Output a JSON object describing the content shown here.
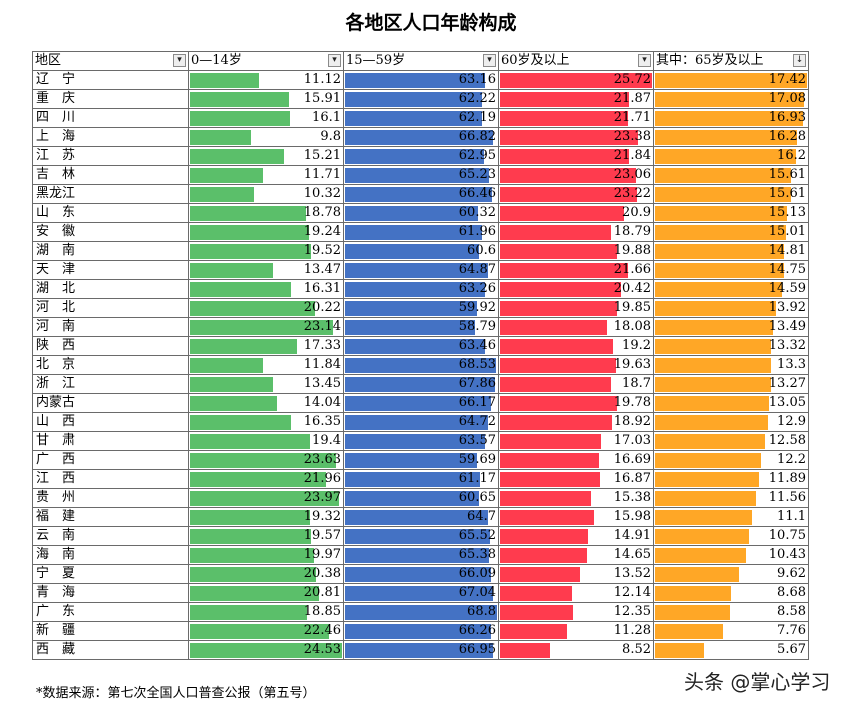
{
  "title": "各地区人口年龄构成",
  "headers": {
    "region": "地区",
    "age0_14": "0—14岁",
    "age15_59": "15—59岁",
    "age60": "60岁及以上",
    "age65": "其中：65岁及以上"
  },
  "filter_icons": {
    "region": "sort-filter-icon",
    "age0_14": "dropdown-icon",
    "age15_59": "dropdown-icon",
    "age60": "dropdown-icon",
    "age65": "sort-descending-icon"
  },
  "colors": {
    "age0_14": "#5bbf6a",
    "age15_59": "#4472c4",
    "age60": "#ff3b4e",
    "age65": "#ffa726"
  },
  "rows": [
    {
      "region": "辽　宁",
      "a": 11.12,
      "b": 63.16,
      "c": 25.72,
      "d": 17.42
    },
    {
      "region": "重　庆",
      "a": 15.91,
      "b": 62.22,
      "c": 21.87,
      "d": 17.08
    },
    {
      "region": "四　川",
      "a": 16.1,
      "b": 62.19,
      "c": 21.71,
      "d": 16.93
    },
    {
      "region": "上　海",
      "a": 9.8,
      "b": 66.82,
      "c": 23.38,
      "d": 16.28
    },
    {
      "region": "江　苏",
      "a": 15.21,
      "b": 62.95,
      "c": 21.84,
      "d": 16.2
    },
    {
      "region": "吉　林",
      "a": 11.71,
      "b": 65.23,
      "c": 23.06,
      "d": 15.61
    },
    {
      "region": "黑龙江",
      "a": 10.32,
      "b": 66.46,
      "c": 23.22,
      "d": 15.61
    },
    {
      "region": "山　东",
      "a": 18.78,
      "b": 60.32,
      "c": 20.9,
      "d": 15.13
    },
    {
      "region": "安　徽",
      "a": 19.24,
      "b": 61.96,
      "c": 18.79,
      "d": 15.01
    },
    {
      "region": "湖　南",
      "a": 19.52,
      "b": 60.6,
      "c": 19.88,
      "d": 14.81
    },
    {
      "region": "天　津",
      "a": 13.47,
      "b": 64.87,
      "c": 21.66,
      "d": 14.75
    },
    {
      "region": "湖　北",
      "a": 16.31,
      "b": 63.26,
      "c": 20.42,
      "d": 14.59
    },
    {
      "region": "河　北",
      "a": 20.22,
      "b": 59.92,
      "c": 19.85,
      "d": 13.92
    },
    {
      "region": "河　南",
      "a": 23.14,
      "b": 58.79,
      "c": 18.08,
      "d": 13.49
    },
    {
      "region": "陕　西",
      "a": 17.33,
      "b": 63.46,
      "c": 19.2,
      "d": 13.32
    },
    {
      "region": "北　京",
      "a": 11.84,
      "b": 68.53,
      "c": 19.63,
      "d": 13.3
    },
    {
      "region": "浙　江",
      "a": 13.45,
      "b": 67.86,
      "c": 18.7,
      "d": 13.27
    },
    {
      "region": "内蒙古",
      "a": 14.04,
      "b": 66.17,
      "c": 19.78,
      "d": 13.05
    },
    {
      "region": "山　西",
      "a": 16.35,
      "b": 64.72,
      "c": 18.92,
      "d": 12.9
    },
    {
      "region": "甘　肃",
      "a": 19.4,
      "b": 63.57,
      "c": 17.03,
      "d": 12.58
    },
    {
      "region": "广　西",
      "a": 23.63,
      "b": 59.69,
      "c": 16.69,
      "d": 12.2
    },
    {
      "region": "江　西",
      "a": 21.96,
      "b": 61.17,
      "c": 16.87,
      "d": 11.89
    },
    {
      "region": "贵　州",
      "a": 23.97,
      "b": 60.65,
      "c": 15.38,
      "d": 11.56
    },
    {
      "region": "福　建",
      "a": 19.32,
      "b": 64.7,
      "c": 15.98,
      "d": 11.1
    },
    {
      "region": "云　南",
      "a": 19.57,
      "b": 65.52,
      "c": 14.91,
      "d": 10.75
    },
    {
      "region": "海　南",
      "a": 19.97,
      "b": 65.38,
      "c": 14.65,
      "d": 10.43
    },
    {
      "region": "宁　夏",
      "a": 20.38,
      "b": 66.09,
      "c": 13.52,
      "d": 9.62
    },
    {
      "region": "青　海",
      "a": 20.81,
      "b": 67.04,
      "c": 12.14,
      "d": 8.68
    },
    {
      "region": "广　东",
      "a": 18.85,
      "b": 68.8,
      "c": 12.35,
      "d": 8.58
    },
    {
      "region": "新　疆",
      "a": 22.46,
      "b": 66.26,
      "c": 11.28,
      "d": 7.76
    },
    {
      "region": "西　藏",
      "a": 24.53,
      "b": 66.95,
      "c": 8.52,
      "d": 5.67
    }
  ],
  "footer": "*数据来源：第七次全国人口普查公报（第五号）",
  "watermark": "头条 @掌心学习"
}
